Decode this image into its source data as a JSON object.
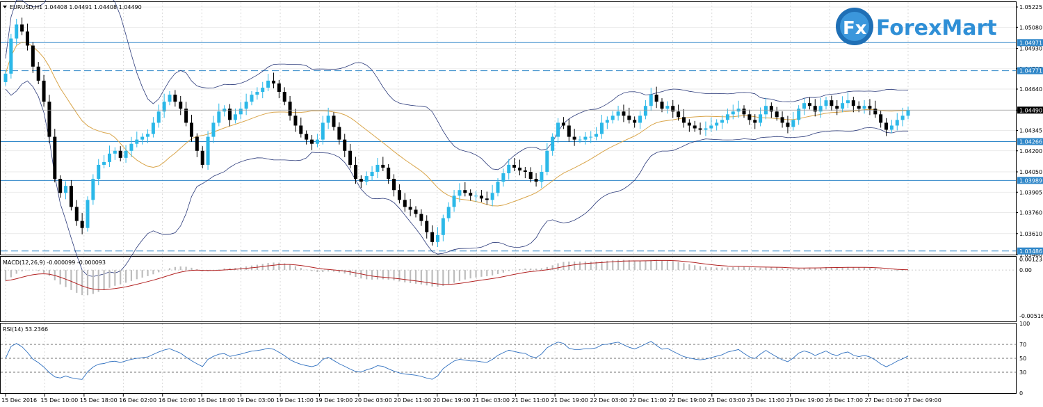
{
  "chart_data": {
    "type": "candlestick",
    "symbol_header": "EURUSD,H1  1.04408 1.04491 1.04408 1.04490",
    "price_axis": {
      "ylim": [
        1.0346,
        1.0526
      ],
      "ticks": [
        "1.05225",
        "1.05080",
        "1.04930",
        "1.04785",
        "1.04640",
        "1.04490",
        "1.04345",
        "1.04200",
        "1.04050",
        "1.03905",
        "1.03760",
        "1.03610",
        "1.03460"
      ],
      "tick_values": [
        1.05225,
        1.0508,
        1.0493,
        1.04785,
        1.0464,
        1.0449,
        1.04345,
        1.042,
        1.0405,
        1.03905,
        1.0376,
        1.0361,
        1.0346
      ]
    },
    "levels": [
      {
        "value": 1.04971,
        "label": "1.04971",
        "style": "solid"
      },
      {
        "value": 1.04771,
        "label": "1.04771",
        "style": "dashed"
      },
      {
        "value": 1.04266,
        "label": "1.04266",
        "style": "solid"
      },
      {
        "value": 1.03989,
        "label": "1.03989",
        "style": "solid"
      },
      {
        "value": 1.03486,
        "label": "1.03486",
        "style": "dashed"
      }
    ],
    "current_price": {
      "value": 1.0449,
      "label": "1.04490"
    },
    "close_series": [
      1.0475,
      1.05,
      1.051,
      1.0505,
      1.0495,
      1.048,
      1.047,
      1.0455,
      1.043,
      1.04,
      1.039,
      1.0395,
      1.038,
      1.037,
      1.0365,
      1.0385,
      1.04,
      1.041,
      1.0412,
      1.0418,
      1.042,
      1.0415,
      1.042,
      1.0425,
      1.0428,
      1.043,
      1.0432,
      1.044,
      1.0448,
      1.0455,
      1.046,
      1.0455,
      1.045,
      1.044,
      1.043,
      1.042,
      1.041,
      1.043,
      1.044,
      1.0448,
      1.045,
      1.0442,
      1.0446,
      1.045,
      1.0455,
      1.046,
      1.0462,
      1.0465,
      1.047,
      1.0468,
      1.0462,
      1.0455,
      1.0445,
      1.0438,
      1.0432,
      1.0428,
      1.0425,
      1.0428,
      1.044,
      1.0445,
      1.0437,
      1.0428,
      1.042,
      1.041,
      1.04,
      1.0398,
      1.0402,
      1.0405,
      1.041,
      1.0408,
      1.04,
      1.0392,
      1.0385,
      1.038,
      1.0378,
      1.0375,
      1.037,
      1.0362,
      1.0355,
      1.036,
      1.0372,
      1.038,
      1.0388,
      1.0392,
      1.039,
      1.0388,
      1.0388,
      1.0386,
      1.0385,
      1.039,
      1.0398,
      1.0404,
      1.041,
      1.0408,
      1.0406,
      1.0405,
      1.04,
      1.0398,
      1.0405,
      1.042,
      1.043,
      1.044,
      1.0438,
      1.043,
      1.0428,
      1.0428,
      1.043,
      1.043,
      1.0432,
      1.044,
      1.0442,
      1.0445,
      1.0448,
      1.0445,
      1.0442,
      1.044,
      1.0445,
      1.0452,
      1.046,
      1.0455,
      1.045,
      1.0452,
      1.0448,
      1.0444,
      1.044,
      1.0438,
      1.0436,
      1.0435,
      1.0436,
      1.0438,
      1.044,
      1.0442,
      1.0446,
      1.0448,
      1.045,
      1.0446,
      1.0442,
      1.044,
      1.0446,
      1.0452,
      1.0448,
      1.0444,
      1.044,
      1.0437,
      1.0442,
      1.045,
      1.0454,
      1.0452,
      1.0448,
      1.0452,
      1.0456,
      1.0452,
      1.045,
      1.0454,
      1.0456,
      1.0452,
      1.045,
      1.0452,
      1.045,
      1.0446,
      1.044,
      1.0435,
      1.0438,
      1.0442,
      1.0445,
      1.0449
    ],
    "indicators": {
      "macd": {
        "label": "MACD(12,26,9) -0.000099 -0.000093",
        "ticks": [
          "0.001231",
          "0.00",
          "-0.005162"
        ],
        "tick_values": [
          0.001231,
          0.0,
          -0.005162
        ],
        "ylim": [
          -0.0058,
          0.0015
        ]
      },
      "rsi": {
        "label": "RSI(14) 53.2366",
        "ticks": [
          "100",
          "70",
          "50",
          "30",
          "0"
        ],
        "tick_values": [
          100,
          70,
          50,
          30,
          0
        ],
        "levels": [
          70,
          50,
          30
        ],
        "ylim": [
          0,
          100
        ]
      }
    },
    "x_ticks": [
      "15 Dec 2016",
      "15 Dec 10:00",
      "15 Dec 18:00",
      "16 Dec 02:00",
      "16 Dec 10:00",
      "16 Dec 18:00",
      "19 Dec 03:00",
      "19 Dec 11:00",
      "19 Dec 19:00",
      "20 Dec 03:00",
      "20 Dec 11:00",
      "20 Dec 19:00",
      "21 Dec 03:00",
      "21 Dec 11:00",
      "21 Dec 19:00",
      "22 Dec 03:00",
      "22 Dec 11:00",
      "22 Dec 19:00",
      "23 Dec 03:00",
      "23 Dec 11:00",
      "23 Dec 19:00",
      "26 Dec 17:00",
      "27 Dec 01:00",
      "27 Dec 09:00"
    ],
    "colors": {
      "bull": "#2bb8e8",
      "bear": "#000000",
      "bands": "#2b3a7a",
      "ma": "#d9a54a",
      "macd_hist": "#bdbdbd",
      "macd_signal": "#b22222",
      "rsi_line": "#2e6fbf",
      "level_line": "#2e86c8"
    }
  },
  "brand": {
    "logo_text": "ForexMart",
    "logo_icon": "fx-icon"
  }
}
